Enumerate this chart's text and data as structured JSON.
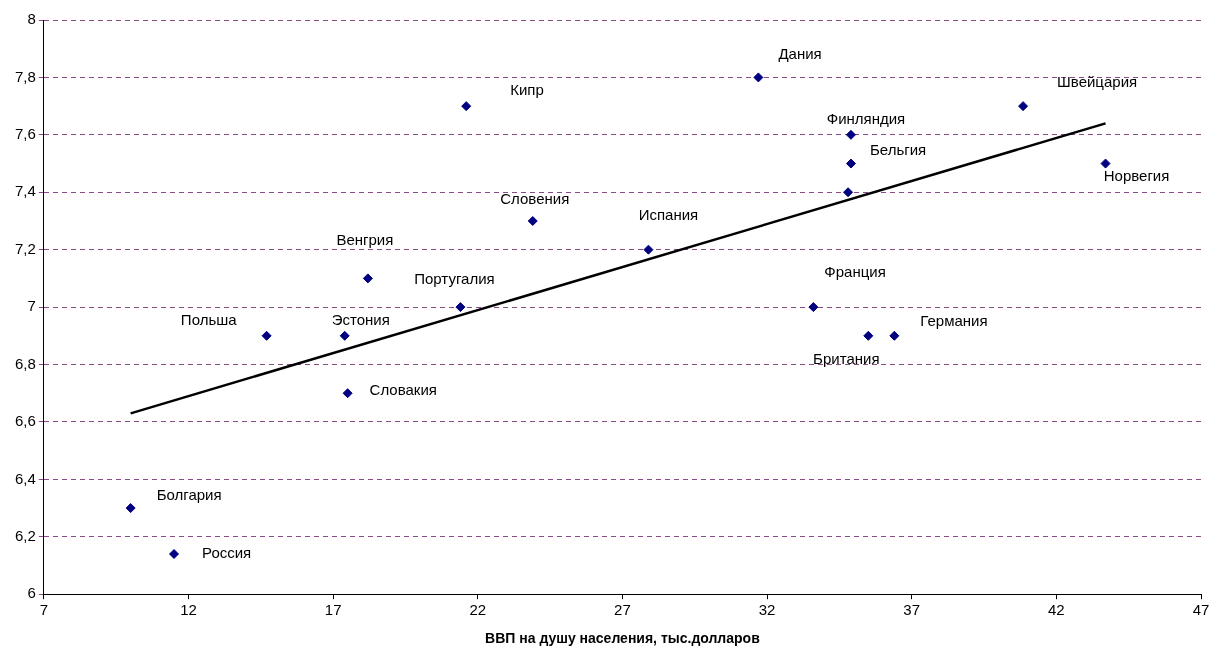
{
  "chart_data": {
    "type": "scatter",
    "xlabel": "ВВП на душу населения, тыс.долларов",
    "xlim": [
      7,
      47
    ],
    "xticks": [
      7,
      12,
      17,
      22,
      27,
      32,
      37,
      42,
      47
    ],
    "ylim": [
      6,
      8
    ],
    "yticks": [
      6,
      {
        "value": 6.2,
        "label": "6,2"
      },
      {
        "value": 6.4,
        "label": "6,4"
      },
      {
        "value": 6.6,
        "label": "6,6"
      },
      {
        "value": 6.8,
        "label": "6,8"
      },
      7,
      {
        "value": 7.2,
        "label": "7,2"
      },
      {
        "value": 7.4,
        "label": "7,4"
      },
      {
        "value": 7.6,
        "label": "7,6"
      },
      {
        "value": 7.8,
        "label": "7,8"
      },
      8
    ],
    "grid": "y",
    "marker": "diamond",
    "legend": false,
    "series": [
      {
        "color": "#000080",
        "x": [
          10,
          11.5,
          14.7,
          17.4,
          17.5,
          18.2,
          21.4,
          21.6,
          23.9,
          27.9,
          31.7,
          33.6,
          34.9,
          34.9,
          34.8,
          35.5,
          36.4,
          40.85,
          43.7
        ],
        "values": [
          6.3,
          6.14,
          6.9,
          6.9,
          6.7,
          7.1,
          7.0,
          7.7,
          7.3,
          7.2,
          7.8,
          7.0,
          7.6,
          7.5,
          7.4,
          6.9,
          6.9,
          7.7,
          7.5
        ]
      },
      {
        "type": "line",
        "color": "#000000",
        "x": [
          10,
          43.7
        ],
        "values": [
          6.63,
          7.64
        ],
        "marker": "none"
      }
    ],
    "annotations": [
      {
        "text": "Болгария",
        "x": 10,
        "y": 6.3
      },
      {
        "text": "Россия",
        "x": 11.5,
        "y": 6.14
      },
      {
        "text": "Польша",
        "x": 14.7,
        "y": 6.9
      },
      {
        "text": "Эстония",
        "x": 17.4,
        "y": 6.9
      },
      {
        "text": "Словакия",
        "x": 17.5,
        "y": 6.7
      },
      {
        "text": "Венгрия",
        "x": 18.2,
        "y": 7.1
      },
      {
        "text": "Португалия",
        "x": 21.4,
        "y": 7.0
      },
      {
        "text": "Кипр",
        "x": 21.6,
        "y": 7.7
      },
      {
        "text": "Словения",
        "x": 23.9,
        "y": 7.3
      },
      {
        "text": "Испания",
        "x": 27.9,
        "y": 7.2
      },
      {
        "text": "Дания",
        "x": 31.7,
        "y": 7.8
      },
      {
        "text": "Франция",
        "x": 33.6,
        "y": 7.0
      },
      {
        "text": "Финляндия",
        "x": 34.9,
        "y": 7.6
      },
      {
        "text": "Бельгия",
        "x": 34.9,
        "y": 7.5
      },
      {
        "text": "Британия",
        "x": 35.5,
        "y": 6.9
      },
      {
        "text": "Германия",
        "x": 36.4,
        "y": 6.9
      },
      {
        "text": "Швейцария",
        "x": 40.85,
        "y": 7.7
      },
      {
        "text": "Норвегия",
        "x": 43.7,
        "y": 7.5
      }
    ]
  }
}
